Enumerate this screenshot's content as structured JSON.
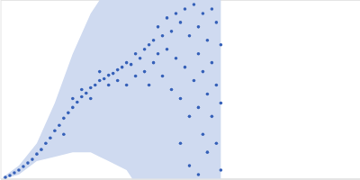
{
  "chart_data": {
    "type": "scatter",
    "x": [
      5,
      10,
      15,
      20,
      25,
      30,
      35,
      40,
      45,
      50,
      55,
      60,
      65,
      70,
      75,
      80,
      85,
      90,
      95,
      100,
      105,
      110,
      115,
      120,
      70,
      80,
      90,
      100,
      110,
      120,
      125,
      130,
      130,
      135,
      140,
      140,
      145,
      150,
      150,
      155,
      160,
      160,
      165,
      165,
      170,
      170,
      175,
      175,
      180,
      180,
      185,
      185,
      190,
      190,
      195,
      195,
      200,
      200,
      205,
      205,
      210,
      210,
      215,
      215,
      220,
      220,
      220,
      225,
      225,
      225,
      230,
      230,
      230,
      235,
      235,
      235,
      240,
      240,
      240,
      245,
      245,
      245,
      200,
      210,
      220
    ],
    "values": [
      2,
      4,
      7,
      10,
      14,
      18,
      22,
      28,
      33,
      40,
      46,
      54,
      60,
      68,
      74,
      80,
      86,
      92,
      96,
      102,
      105,
      110,
      112,
      116,
      50,
      90,
      100,
      90,
      120,
      105,
      118,
      122,
      110,
      125,
      130,
      105,
      128,
      140,
      115,
      135,
      145,
      120,
      150,
      105,
      155,
      130,
      170,
      140,
      160,
      115,
      180,
      145,
      165,
      100,
      185,
      135,
      175,
      90,
      190,
      125,
      160,
      70,
      195,
      110,
      170,
      140,
      80,
      185,
      120,
      50,
      155,
      95,
      30,
      190,
      130,
      70,
      175,
      105,
      40,
      150,
      85,
      10,
      40,
      15,
      5
    ],
    "color": "#3560b8",
    "marker": "circle",
    "band": {
      "x": [
        2,
        20,
        40,
        60,
        80,
        100,
        110,
        120,
        140,
        160,
        180,
        200,
        220,
        245
      ],
      "lower": [
        0,
        5,
        20,
        25,
        30,
        30,
        25,
        20,
        10,
        -20,
        -20,
        -20,
        -20,
        -20
      ],
      "upper": [
        2,
        15,
        40,
        85,
        140,
        185,
        200,
        230,
        230,
        230,
        230,
        230,
        230,
        230
      ],
      "color": "#cfdaf0"
    },
    "xlim": [
      0,
      400
    ],
    "ylim": [
      0,
      200
    ],
    "xticks": [],
    "yticks": [
      100
    ],
    "grid": true,
    "tick_labels": false
  }
}
